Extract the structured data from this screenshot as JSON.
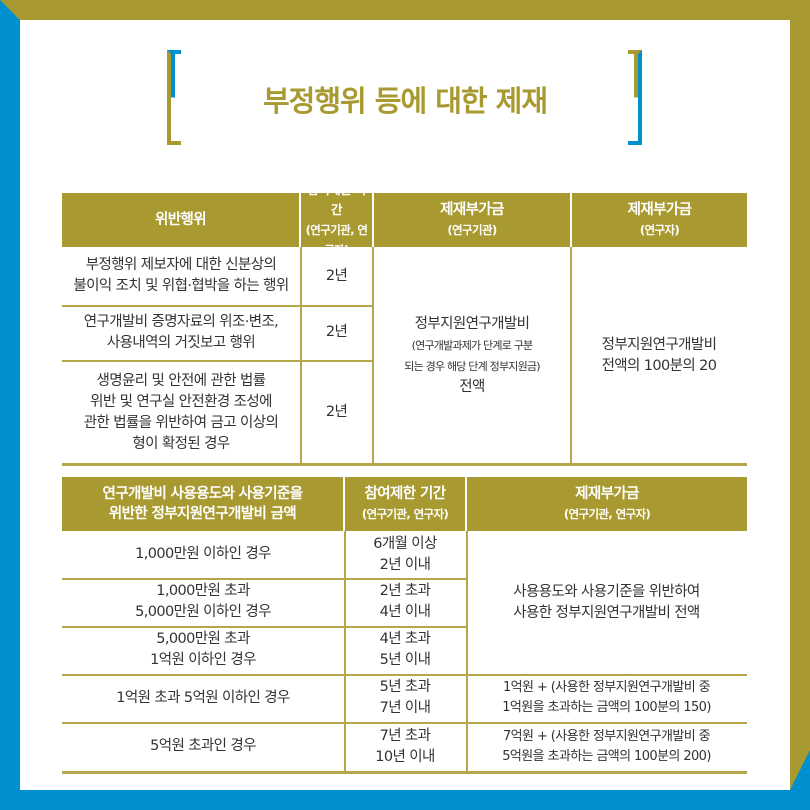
{
  "title": "부정행위 등에 대한 제재",
  "colors": {
    "gold": "#a89a30",
    "blue": "#0090cf"
  },
  "table1": {
    "headers": [
      "위반행위",
      "참여제한 기간",
      "(연구기관, 연구자)",
      "제재부가금",
      "(연구기관)",
      "제재부가금",
      "(연구자)"
    ],
    "rows": [
      {
        "act": [
          "부정행위 제보자에 대한 신분상의",
          "불이익 조치 및 위협·협박을 하는 행위"
        ],
        "period": "2년"
      },
      {
        "act": [
          "연구개발비 증명자료의 위조·변조,",
          "사용내역의 거짓보고 행위"
        ],
        "period": "2년"
      },
      {
        "act": [
          "생명윤리 및 안전에 관한 법률",
          "위반 및 연구실 안전환경 조성에",
          "관한 법률을 위반하여 금고 이상의",
          "형이 확정된 경우"
        ],
        "period": "2년"
      }
    ],
    "inst_penalty": [
      "정부지원연구개발비",
      "(연구개발과제가 단계로 구분",
      "되는 경우 해당 단계 정부지원금)",
      "전액"
    ],
    "res_penalty": [
      "정부지원연구개발비",
      "전액의 100분의 20"
    ]
  },
  "table2": {
    "headers": [
      "연구개발비 사용용도와 사용기준을",
      "위반한 정부지원연구개발비 금액",
      "참여제한 기간",
      "(연구기관, 연구자)",
      "제재부가금",
      "(연구기관, 연구자)"
    ],
    "rows": [
      {
        "amount": [
          "1,000만원 이하인 경우"
        ],
        "period": [
          "6개월 이상",
          "2년 이내"
        ]
      },
      {
        "amount": [
          "1,000만원 초과",
          "5,000만원 이하인 경우"
        ],
        "period": [
          "2년 초과",
          "4년 이내"
        ]
      },
      {
        "amount": [
          "5,000만원 초과",
          "1억원 이하인 경우"
        ],
        "period": [
          "4년 초과",
          "5년 이내"
        ]
      },
      {
        "amount": [
          "1억원 초과 5억원 이하인 경우"
        ],
        "period": [
          "5년 초과",
          "7년 이내"
        ],
        "penalty": [
          "1억원 + (사용한 정부지원연구개발비 중",
          "1억원을 초과하는 금액의 100분의 150)"
        ]
      },
      {
        "amount": [
          "5억원 초과인 경우"
        ],
        "period": [
          "7년 초과",
          "10년 이내"
        ],
        "penalty": [
          "7억원 + (사용한 정부지원연구개발비 중",
          "5억원을 초과하는 금액의 100분의 200)"
        ]
      }
    ],
    "merged_penalty": [
      "사용용도와 사용기준을 위반하여",
      "사용한 정부지원연구개발비 전액"
    ]
  }
}
